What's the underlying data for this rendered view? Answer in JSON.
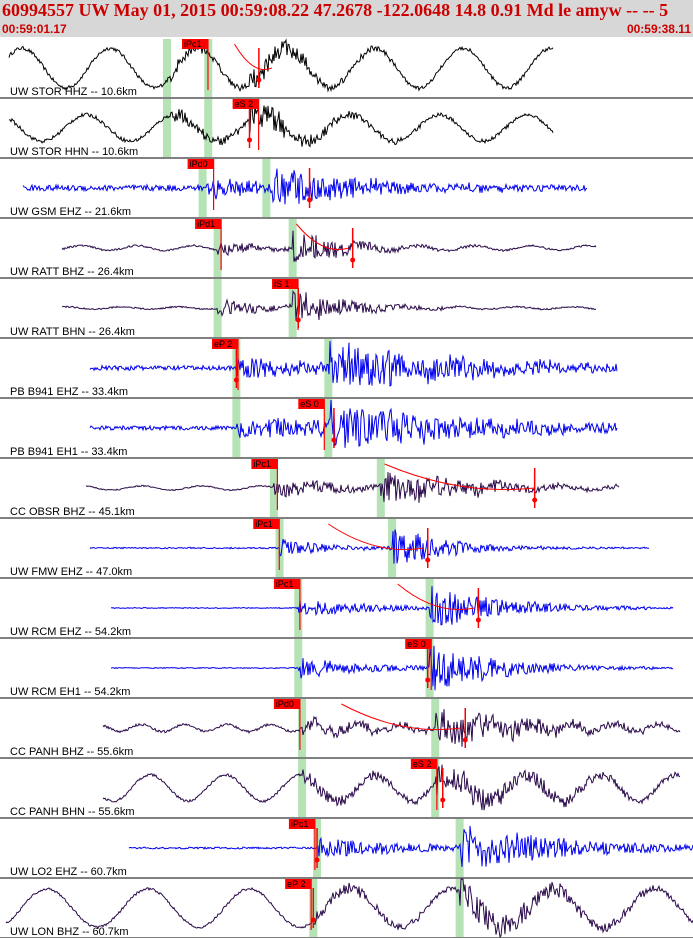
{
  "header": {
    "title": "60994557 UW May 01, 2015 00:59:08.22   47.2678 -122.0648 14.8 0.91 Md le amyw -- --   5",
    "start_time": "00:59:01.17",
    "end_time": "00:59:38.11"
  },
  "colors": {
    "header_bg": "#d7d7d7",
    "header_text": "#cc0000",
    "trace_black": "#000000",
    "trace_blue": "#0000ee",
    "trace_purple": "#2a0a4a",
    "pick_red": "#ff0000",
    "window_green": "#b5e3b5"
  },
  "chart_data": {
    "type": "seismogram",
    "x_range_s": [
      0,
      36.94
    ],
    "traces": [
      {
        "label": "UW STOR HHZ -- 10.6km",
        "color": "#000000",
        "span": [
          0.5,
          29.5
        ],
        "p_onset": 9.1,
        "s_onset": 13.3,
        "noise": 0.03,
        "lf_amp": 0.33,
        "lf_period": 4.7,
        "burst": 0.22,
        "decay": 3.5,
        "pick": "iPc1",
        "pick_t": 9.7,
        "flag_t": 13.8,
        "windows": [
          8.9,
          11.1
        ],
        "theory": [
          12.5,
          14.5
        ]
      },
      {
        "label": "UW STOR HHN -- 10.6km",
        "color": "#000000",
        "span": [
          0.5,
          29.5
        ],
        "p_onset": 9.1,
        "s_onset": 13.3,
        "noise": 0.03,
        "lf_amp": 0.22,
        "lf_period": 4.7,
        "burst": 0.27,
        "decay": 3.5,
        "pick": "eS 2",
        "pick_t": 12.4,
        "flag_t": 13.3,
        "windows": [
          8.9,
          11.1
        ],
        "theory": null
      },
      {
        "label": "UW GSM EHZ -- 21.6km",
        "color": "#0000ee",
        "span": [
          1.2,
          31.3
        ],
        "p_onset": 11.0,
        "s_onset": 14.5,
        "noise": 0.05,
        "lf_amp": 0.0,
        "lf_period": 3,
        "burst": 0.35,
        "decay": 5,
        "pick": "iPd0",
        "pick_t": 10.0,
        "flag_t": 16.5,
        "windows": [
          10.8,
          14.2
        ],
        "theory": null
      },
      {
        "label": "UW RATT BHZ -- 26.4km",
        "color": "#2a0a4a",
        "span": [
          3.3,
          31.8
        ],
        "p_onset": 11.6,
        "s_onset": 15.6,
        "noise": 0.015,
        "lf_amp": 0.04,
        "lf_period": 3,
        "burst": 0.28,
        "decay": 3,
        "pick": "iPd1",
        "pick_t": 10.4,
        "flag_t": 18.8,
        "windows": [
          11.6,
          15.6
        ],
        "theory": [
          15.8,
          18.6
        ]
      },
      {
        "label": "UW RATT BHN -- 26.4km",
        "color": "#2a0a4a",
        "span": [
          3.3,
          31.8
        ],
        "p_onset": 11.6,
        "s_onset": 15.6,
        "noise": 0.012,
        "lf_amp": 0.02,
        "lf_period": 3,
        "burst": 0.3,
        "decay": 3,
        "pick": "iS 1",
        "pick_t": 14.5,
        "flag_t": 15.9,
        "windows": [
          11.6,
          15.6
        ],
        "theory": null
      },
      {
        "label": "PB B941 EHZ -- 33.4km",
        "color": "#0000ee",
        "span": [
          4.8,
          32.9
        ],
        "p_onset": 12.6,
        "s_onset": 17.5,
        "noise": 0.04,
        "lf_amp": 0.0,
        "lf_period": 3,
        "burst": 0.4,
        "decay": 8,
        "pick": "eP 2",
        "pick_t": 11.3,
        "flag_t": 12.6,
        "windows": [
          12.6,
          17.5
        ],
        "theory": null
      },
      {
        "label": "PB B941 EH1 -- 33.4km",
        "color": "#0000ee",
        "span": [
          4.8,
          32.9
        ],
        "p_onset": 12.6,
        "s_onset": 17.5,
        "noise": 0.035,
        "lf_amp": 0.0,
        "lf_period": 3,
        "burst": 0.42,
        "decay": 8,
        "pick": "eS 0",
        "pick_t": 15.9,
        "flag_t": 17.8,
        "windows": [
          12.6,
          17.5
        ],
        "theory": null
      },
      {
        "label": "CC OBSR BHZ -- 45.1km",
        "color": "#2a0a4a",
        "span": [
          4.6,
          33.0
        ],
        "p_onset": 14.6,
        "s_onset": 20.3,
        "noise": 0.01,
        "lf_amp": 0.035,
        "lf_period": 3.2,
        "burst": 0.33,
        "decay": 5,
        "pick": "iPc1",
        "pick_t": 13.4,
        "flag_t": 28.5,
        "windows": [
          14.6,
          20.3
        ],
        "theory": [
          20.5,
          28.5
        ]
      },
      {
        "label": "UW FMW EHZ -- 47.0km",
        "color": "#0000ee",
        "span": [
          4.8,
          34.6
        ],
        "p_onset": 14.9,
        "s_onset": 20.9,
        "noise": 0.012,
        "lf_amp": 0.0,
        "lf_period": 3,
        "burst": 0.35,
        "decay": 3,
        "pick": "iPc1",
        "pick_t": 13.5,
        "flag_t": 22.8,
        "windows": [
          14.9,
          20.9
        ],
        "theory": [
          17.5,
          22.6
        ]
      },
      {
        "label": "UW RCM EHZ -- 54.2km",
        "color": "#0000ee",
        "span": [
          5.9,
          35.9
        ],
        "p_onset": 15.9,
        "s_onset": 22.9,
        "noise": 0.008,
        "lf_amp": 0.0,
        "lf_period": 3,
        "burst": 0.38,
        "decay": 4,
        "pick": "iPc1",
        "pick_t": 14.6,
        "flag_t": 25.5,
        "windows": [
          15.9,
          22.9
        ],
        "theory": [
          21.2,
          25.3
        ]
      },
      {
        "label": "UW RCM EH1 -- 54.2km",
        "color": "#0000ee",
        "span": [
          5.9,
          35.9
        ],
        "p_onset": 15.9,
        "s_onset": 22.9,
        "noise": 0.008,
        "lf_amp": 0.0,
        "lf_period": 3,
        "burst": 0.4,
        "decay": 4,
        "pick": "eS 0",
        "pick_t": 21.6,
        "flag_t": 22.8,
        "windows": [
          15.9,
          22.9
        ],
        "theory": null
      },
      {
        "label": "CC PANH BHZ -- 55.6km",
        "color": "#2a0a4a",
        "span": [
          5.5,
          36.3
        ],
        "p_onset": 16.1,
        "s_onset": 23.2,
        "noise": 0.02,
        "lf_amp": 0.06,
        "lf_period": 2.3,
        "burst": 0.3,
        "decay": 6,
        "pick": "iPd0",
        "pick_t": 14.6,
        "flag_t": 24.8,
        "windows": [
          16.1,
          23.2
        ],
        "theory": [
          18.2,
          24.6
        ]
      },
      {
        "label": "CC PANH BHN -- 55.6km",
        "color": "#2a0a4a",
        "span": [
          5.5,
          36.3
        ],
        "p_onset": 16.1,
        "s_onset": 23.2,
        "noise": 0.02,
        "lf_amp": 0.22,
        "lf_period": 4,
        "burst": 0.28,
        "decay": 6,
        "pick": "eS 2",
        "pick_t": 21.9,
        "flag_t": 23.6,
        "windows": [
          16.1,
          23.2
        ],
        "theory": null
      },
      {
        "label": "UW LO2 EHZ -- 60.7km",
        "color": "#0000ee",
        "span": [
          6.9,
          36.94
        ],
        "p_onset": 16.9,
        "s_onset": 24.5,
        "noise": 0.015,
        "lf_amp": 0.0,
        "lf_period": 3,
        "burst": 0.38,
        "decay": 6,
        "pick": "iPc1",
        "pick_t": 15.4,
        "flag_t": 16.9,
        "windows": [
          16.9,
          24.5
        ],
        "theory": null
      },
      {
        "label": "UW LON BHZ -- 60.7km",
        "color": "#2a0a4a",
        "span": [
          0.3,
          36.94
        ],
        "p_onset": 16.7,
        "s_onset": 24.5,
        "noise": 0.02,
        "lf_amp": 0.32,
        "lf_period": 5.4,
        "burst": 0.28,
        "decay": 6,
        "pick": "eP 2",
        "pick_t": 15.2,
        "flag_t": 16.7,
        "windows": [
          16.7,
          24.5
        ],
        "theory": null
      }
    ]
  }
}
